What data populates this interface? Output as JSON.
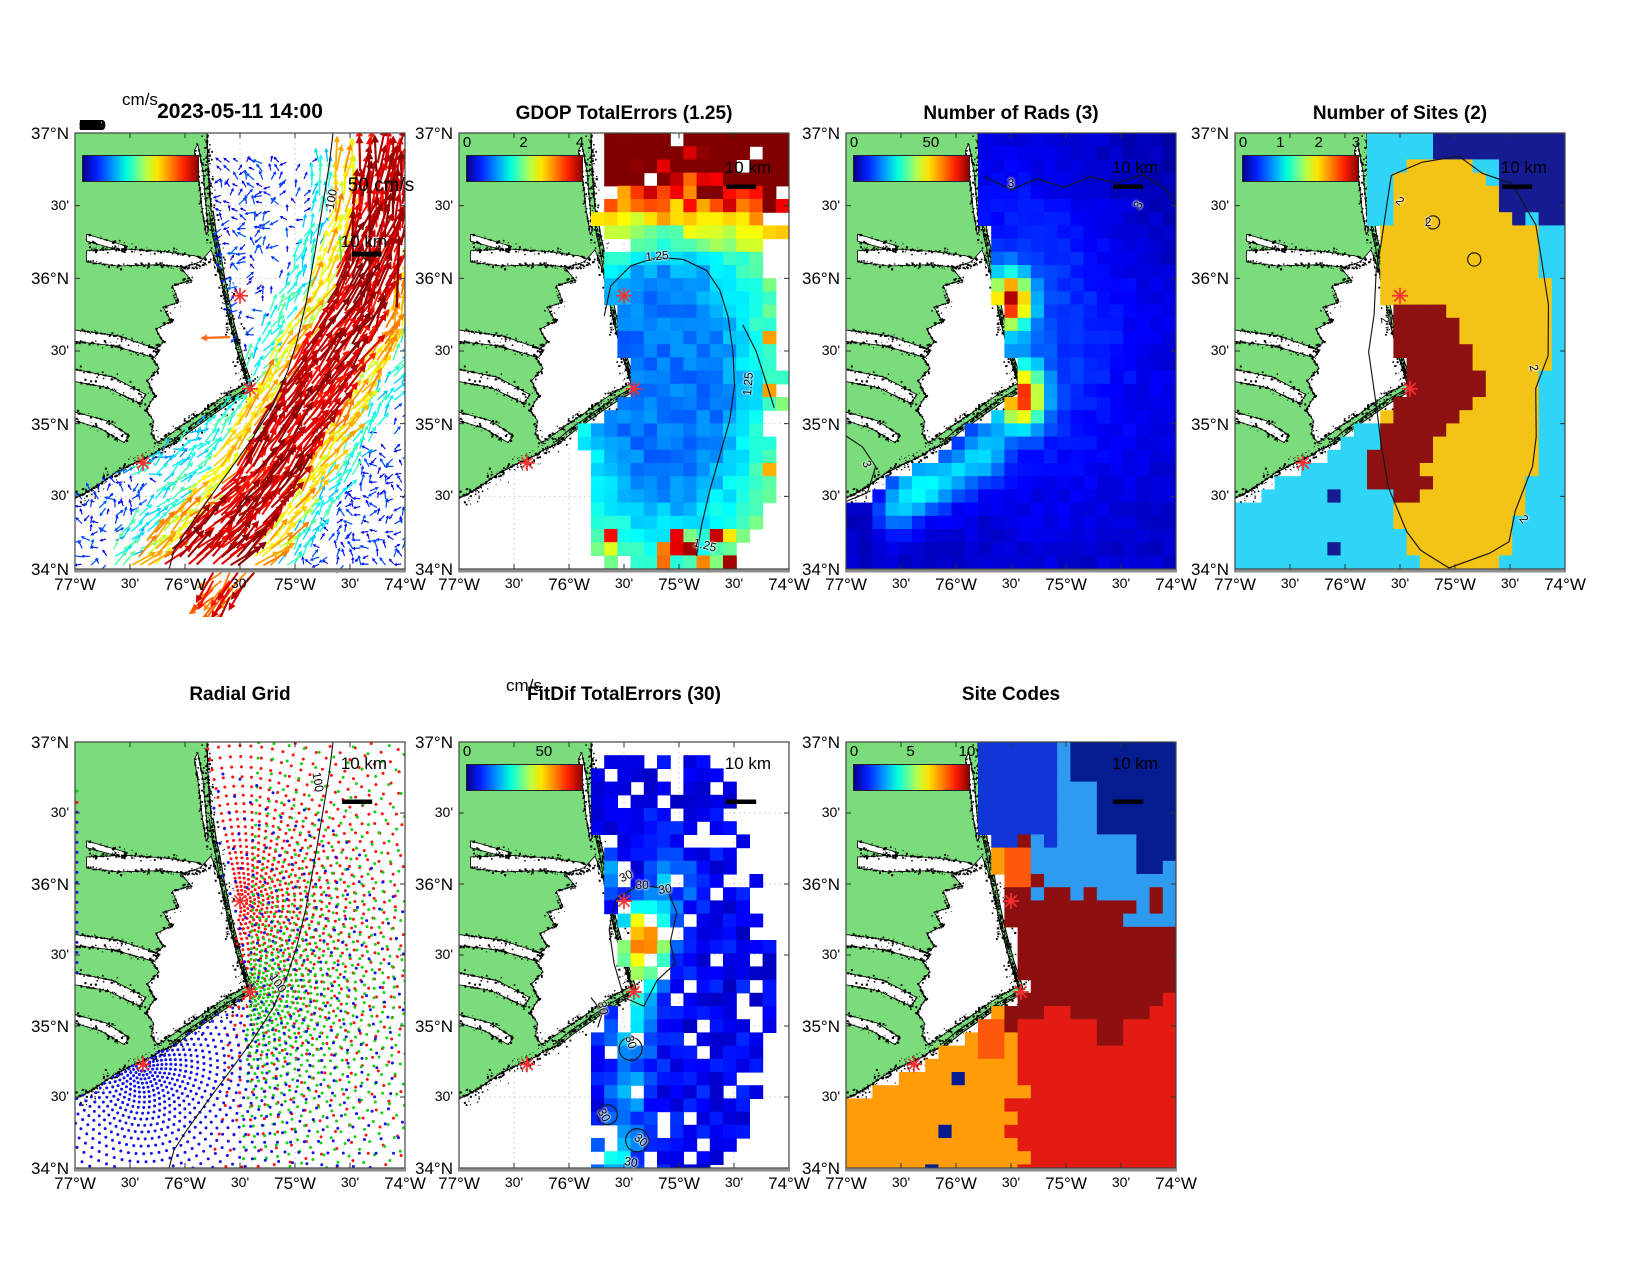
{
  "figure": {
    "background": "#ffffff",
    "kind": "HF-radar surface current total-vector diagnostic maps, Cape Hatteras NC region"
  },
  "colors": {
    "land": "#7adc7a",
    "ocean": "#ffffff",
    "grid": "#c6c6c6",
    "coast": "#000000",
    "site_marker": "#f73131",
    "colormap": "jet",
    "sites_levels": [
      "#151b91",
      "#2ed5f6",
      "#f3c315",
      "#8e1111"
    ],
    "code_regions": {
      "navy": "#041c90",
      "blue": "#1036d8",
      "light_blue": "#2f9bf0",
      "maroon": "#8e0f0f",
      "red": "#e31b12",
      "orange_red": "#fe5a0d",
      "orange": "#ff9c07"
    },
    "radial_series": {
      "north_site": "#ff1010",
      "central_site": "#12d112",
      "south_site": "#1212ee"
    }
  },
  "axis": {
    "lat_ticks": [
      "37°N",
      "30'",
      "36°N",
      "30'",
      "35°N",
      "30'",
      "34°N"
    ],
    "lon_ticks": [
      "77°W",
      "30'",
      "76°W",
      "30'",
      "75°W",
      "30'",
      "74°W"
    ]
  },
  "sites": [
    {
      "id": "north-site",
      "lon": -75.5,
      "lat": 35.88
    },
    {
      "id": "hatteras-site",
      "lon": -75.41,
      "lat": 35.24
    },
    {
      "id": "south-site",
      "lon": -76.38,
      "lat": 34.73
    }
  ],
  "panels": [
    {
      "key": "totals",
      "title": "2023-05-11 14:00",
      "units": "cm/s",
      "colorbar_ticks_overlapped": "0 5 10 15 20 25 30 35 40 45 50",
      "scale_label": "10 km",
      "ref_vector_label": "50 cm/s",
      "contour_labels": [
        "-100"
      ]
    },
    {
      "key": "gdop",
      "title": "GDOP TotalErrors (1.25)",
      "colorbar_ticks": [
        "0",
        "2",
        "4"
      ],
      "scale_label": "10 km",
      "contour_labels": [
        "1.25"
      ]
    },
    {
      "key": "nrads",
      "title": "Number of Rads (3)",
      "colorbar_ticks": [
        "0",
        "50"
      ],
      "scale_label": "10 km",
      "contour_labels": [
        "3"
      ]
    },
    {
      "key": "nsites",
      "title": "Number of Sites (2)",
      "colorbar_ticks": [
        "0",
        "1",
        "2",
        "3"
      ],
      "scale_label": "10 km",
      "contour_labels": [
        "2"
      ]
    },
    {
      "key": "radialgrid",
      "title": "Radial Grid",
      "scale_label": "10 km",
      "contour_labels": [
        "100"
      ]
    },
    {
      "key": "fitdif",
      "title": "FitDif TotalErrors (30)",
      "units": "cm/s",
      "colorbar_ticks": [
        "0",
        "50"
      ],
      "scale_label": "10 km",
      "contour_labels": [
        "30"
      ]
    },
    {
      "key": "sitecodes",
      "title": "Site Codes",
      "colorbar_ticks": [
        "0",
        "5",
        "10"
      ],
      "scale_label": "10 km",
      "contour_labels": []
    }
  ],
  "chart_data": [
    {
      "panel": "2023-05-11 14:00",
      "type": "heatmap",
      "subtype": "vector-field-map",
      "extent": {
        "lon": [
          -77,
          -74
        ],
        "lat": [
          34,
          37
        ]
      },
      "units": "cm/s",
      "colorbar_range": [
        0,
        50
      ],
      "reference_vector_cm_s": 50,
      "scale_bar_km": 10,
      "depth_contour_m": 100,
      "description": "Total surface-current vectors: weak 5-15 cm/s blue vectors north and nearshore, 40-55 cm/s dark-red Gulf Stream jet flowing northeastward across the southeast half",
      "radar_sites_lonlat": [
        [
          -75.5,
          35.88
        ],
        [
          -75.41,
          35.24
        ],
        [
          -76.38,
          34.73
        ]
      ]
    },
    {
      "panel": "GDOP TotalErrors (1.25)",
      "type": "heatmap",
      "extent": {
        "lon": [
          -77,
          -74
        ],
        "lat": [
          34,
          37
        ]
      },
      "colorbar_range": [
        0,
        4
      ],
      "contour_level": 1.25,
      "scale_bar_km": 10,
      "description": "GDOP ~0.8-1.2 (blue) over the core coverage, rising through 1.25 near the edges and 2.5-4 (red/dark red) along the ragged northern boundary"
    },
    {
      "panel": "Number of Rads (3)",
      "type": "heatmap",
      "extent": {
        "lon": [
          -77,
          -74
        ],
        "lat": [
          34,
          37
        ]
      },
      "colorbar_range": [
        0,
        70
      ],
      "colorbar_ticks": [
        0,
        50
      ],
      "contour_level": 3,
      "scale_bar_km": 10,
      "description": "Mostly 3-8 radials (dark blue) over the whole shelf with ~50-radial hot spots (red/orange) at the two northern radar sites and a weak yellow-green streak near the southern site"
    },
    {
      "panel": "Number of Sites (2)",
      "type": "heatmap",
      "subtype": "categorical",
      "extent": {
        "lon": [
          -77,
          -74
        ],
        "lat": [
          34,
          37
        ]
      },
      "levels": [
        0,
        1,
        2,
        3
      ],
      "contour_level": 2,
      "scale_bar_km": 10,
      "description": "Discrete site-count map: navy=0 (far NE corner), cyan=1 (outer fringe), gold=2 (main coverage), dark red=3 (inner overlap region)"
    },
    {
      "panel": "Radial Grid",
      "type": "scatter",
      "extent": {
        "lon": [
          -77,
          -74
        ],
        "lat": [
          34,
          37
        ]
      },
      "scale_bar_km": 10,
      "depth_contour_m": 100,
      "series": [
        {
          "name": "north site radial grid",
          "color": "red",
          "origin_lonlat": [
            -75.5,
            35.88
          ]
        },
        {
          "name": "central site radial grid",
          "color": "green",
          "origin_lonlat": [
            -75.41,
            35.24
          ]
        },
        {
          "name": "south site radial grid",
          "color": "blue",
          "origin_lonlat": [
            -76.38,
            34.73
          ]
        }
      ],
      "description": "Polar grids of range/bearing cells (dots) fanning seaward from each of the three radar sites"
    },
    {
      "panel": "FitDif TotalErrors (30)",
      "type": "heatmap",
      "units": "cm/s",
      "extent": {
        "lon": [
          -77,
          -74
        ],
        "lat": [
          34,
          37
        ]
      },
      "colorbar_range": [
        0,
        73
      ],
      "colorbar_ticks": [
        0,
        50
      ],
      "contour_level": 30,
      "scale_bar_km": 10,
      "description": "Patchy 5-15 cm/s (blue) fit differences with a 40-55 cm/s (red/dark red) blob east of Cape Hatteras ringed by 30 cm/s contours"
    },
    {
      "panel": "Site Codes",
      "type": "heatmap",
      "subtype": "categorical",
      "extent": {
        "lon": [
          -77,
          -74
        ],
        "lat": [
          34,
          37
        ]
      },
      "colorbar_range": [
        0,
        10
      ],
      "scale_bar_km": 10,
      "description": "Blocky site-code regions: navy NE corner, blue band along the northern coast, light blue NE interior, dark red center, red SE, orange SW, orange-red patches near the coast"
    }
  ]
}
